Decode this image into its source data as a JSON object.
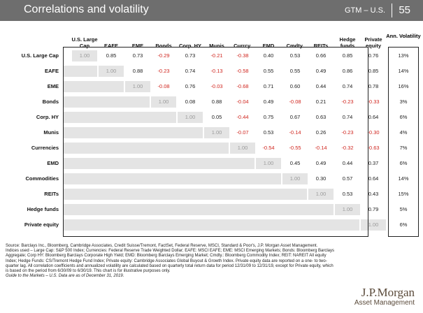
{
  "header": {
    "title": "Correlations and volatility",
    "tag": "GTM – U.S.",
    "page": "55"
  },
  "columns": [
    "U.S. Large Cap",
    "EAFE",
    "EME",
    "Bonds",
    "Corp. HY",
    "Munis",
    "Currcy.",
    "EMD",
    "Cmdty.",
    "REITs",
    "Hedge funds",
    "Private equity"
  ],
  "volatility_header": "Ann. Volatility",
  "rows": [
    {
      "label": "U.S. Large Cap",
      "values": [
        "1.00",
        "0.85",
        "0.73",
        "-0.29",
        "0.73",
        "-0.21",
        "-0.38",
        "0.40",
        "0.53",
        "0.66",
        "0.85",
        "0.76"
      ],
      "vol": "13%"
    },
    {
      "label": "EAFE",
      "values": [
        "",
        "1.00",
        "0.88",
        "-0.23",
        "0.74",
        "-0.13",
        "-0.58",
        "0.55",
        "0.55",
        "0.49",
        "0.86",
        "0.85"
      ],
      "vol": "14%"
    },
    {
      "label": "EME",
      "values": [
        "",
        "",
        "1.00",
        "-0.08",
        "0.76",
        "-0.03",
        "-0.68",
        "0.71",
        "0.60",
        "0.44",
        "0.74",
        "0.78"
      ],
      "vol": "16%"
    },
    {
      "label": "Bonds",
      "values": [
        "",
        "",
        "",
        "1.00",
        "0.08",
        "0.88",
        "-0.04",
        "0.49",
        "-0.08",
        "0.21",
        "-0.23",
        "-0.33"
      ],
      "vol": "3%"
    },
    {
      "label": "Corp. HY",
      "values": [
        "",
        "",
        "",
        "",
        "1.00",
        "0.05",
        "-0.44",
        "0.75",
        "0.67",
        "0.63",
        "0.74",
        "0.64"
      ],
      "vol": "6%"
    },
    {
      "label": "Munis",
      "values": [
        "",
        "",
        "",
        "",
        "",
        "1.00",
        "-0.07",
        "0.53",
        "-0.14",
        "0.26",
        "-0.23",
        "-0.30"
      ],
      "vol": "4%"
    },
    {
      "label": "Currencies",
      "values": [
        "",
        "",
        "",
        "",
        "",
        "",
        "1.00",
        "-0.54",
        "-0.55",
        "-0.14",
        "-0.32",
        "-0.63"
      ],
      "vol": "7%"
    },
    {
      "label": "EMD",
      "values": [
        "",
        "",
        "",
        "",
        "",
        "",
        "",
        "1.00",
        "0.45",
        "0.49",
        "0.44",
        "0.37"
      ],
      "vol": "6%"
    },
    {
      "label": "Commodities",
      "values": [
        "",
        "",
        "",
        "",
        "",
        "",
        "",
        "",
        "1.00",
        "0.30",
        "0.57",
        "0.64"
      ],
      "vol": "14%"
    },
    {
      "label": "REITs",
      "values": [
        "",
        "",
        "",
        "",
        "",
        "",
        "",
        "",
        "",
        "1.00",
        "0.53",
        "0.43"
      ],
      "vol": "15%"
    },
    {
      "label": "Hedge funds",
      "values": [
        "",
        "",
        "",
        "",
        "",
        "",
        "",
        "",
        "",
        "",
        "1.00",
        "0.79"
      ],
      "vol": "5%"
    },
    {
      "label": "Private equity",
      "values": [
        "",
        "",
        "",
        "",
        "",
        "",
        "",
        "",
        "",
        "",
        "",
        "1.00"
      ],
      "vol": "6%"
    }
  ],
  "notes": {
    "source": "Source: Barclays Inc., Bloomberg, Cambridge Associates, Credit Suisse/Tremont, FactSet, Federal Reserve, MSCI, Standard & Poor's, J.P. Morgan Asset Management.",
    "indices": "Indices used – Large Cap: S&P 500 Index; Currencies: Federal Reserve Trade Weighted Dollar; EAFE: MSCI EAFE; EME: MSCI Emerging Markets; Bonds: Bloomberg Barclays Aggregate; Corp HY: Bloomberg Barclays Corporate High Yield; EMD: Bloomberg Barclays Emerging Market; Cmdty.: Bloomberg Commodity Index; REIT: NAREIT All equity Index; Hedge Funds: CS/Tremont Hedge Fund Index; Private equity: Cambridge Associates Global Buyout & Growth Index. Private equity data are reported on a one- to two-quarter lag. All correlation coefficients and annualized volatility are calculated based on quarterly total return data for period 12/31/09 to 12/31/19, except for Private equity, which is based on the period from 6/30/09 to 6/30/19. This chart is for illustrative purposes only.",
    "guide": "Guide to the Markets – U.S. Data are as of December 31, 2019."
  },
  "logo": {
    "line1": "J.P.Morgan",
    "line2": "Asset Management"
  }
}
